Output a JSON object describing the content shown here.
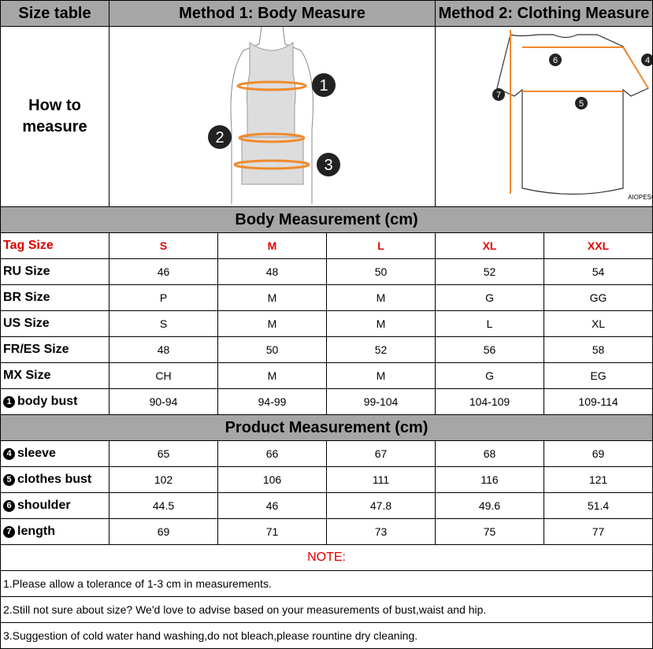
{
  "header": {
    "col1": "Size table",
    "col2": "Method 1: Body  Measure",
    "col3": "Method 2: Clothing Measure"
  },
  "how_to": {
    "line1": "How to",
    "line2": "measure"
  },
  "illustrations": {
    "body_markers": [
      "1",
      "2",
      "3"
    ],
    "shirt_markers": [
      "4",
      "5",
      "6",
      "7"
    ],
    "brand": "AIOPESON"
  },
  "colors": {
    "header_bg": "#a6a6a6",
    "accent_red": "#e00000",
    "measure_orange": "#f08a2c"
  },
  "body_section": {
    "title": "Body Measurement (cm)",
    "tag_row": {
      "label": "Tag Size",
      "values": [
        "S",
        "M",
        "L",
        "XL",
        "XXL"
      ]
    },
    "rows": [
      {
        "label": "RU Size",
        "values": [
          "46",
          "48",
          "50",
          "52",
          "54"
        ]
      },
      {
        "label": "BR Size",
        "values": [
          "P",
          "M",
          "M",
          "G",
          "GG"
        ]
      },
      {
        "label": "US Size",
        "values": [
          "S",
          "M",
          "M",
          "L",
          "XL"
        ]
      },
      {
        "label": "FR/ES Size",
        "values": [
          "48",
          "50",
          "52",
          "56",
          "58"
        ]
      },
      {
        "label": "MX Size",
        "values": [
          "CH",
          "M",
          "M",
          "G",
          "EG"
        ]
      },
      {
        "num": "1",
        "label": "body bust",
        "values": [
          "90-94",
          "94-99",
          "99-104",
          "104-109",
          "109-114"
        ]
      }
    ]
  },
  "product_section": {
    "title": "Product Measurement (cm)",
    "rows": [
      {
        "num": "4",
        "label": "sleeve",
        "values": [
          "65",
          "66",
          "67",
          "68",
          "69"
        ]
      },
      {
        "num": "5",
        "label": "clothes bust",
        "values": [
          "102",
          "106",
          "111",
          "116",
          "121"
        ]
      },
      {
        "num": "6",
        "label": "shoulder",
        "values": [
          "44.5",
          "46",
          "47.8",
          "49.6",
          "51.4"
        ]
      },
      {
        "num": "7",
        "label": "length",
        "values": [
          "69",
          "71",
          "73",
          "75",
          "77"
        ]
      }
    ]
  },
  "notes": {
    "title": "NOTE:",
    "items": [
      "1.Please allow a tolerance of 1-3 cm in measurements.",
      "2.Still not sure about size? We'd love to advise based on your measurements of bust,waist and hip.",
      "3.Suggestion of cold water hand washing,do not bleach,please rountine dry cleaning."
    ]
  }
}
